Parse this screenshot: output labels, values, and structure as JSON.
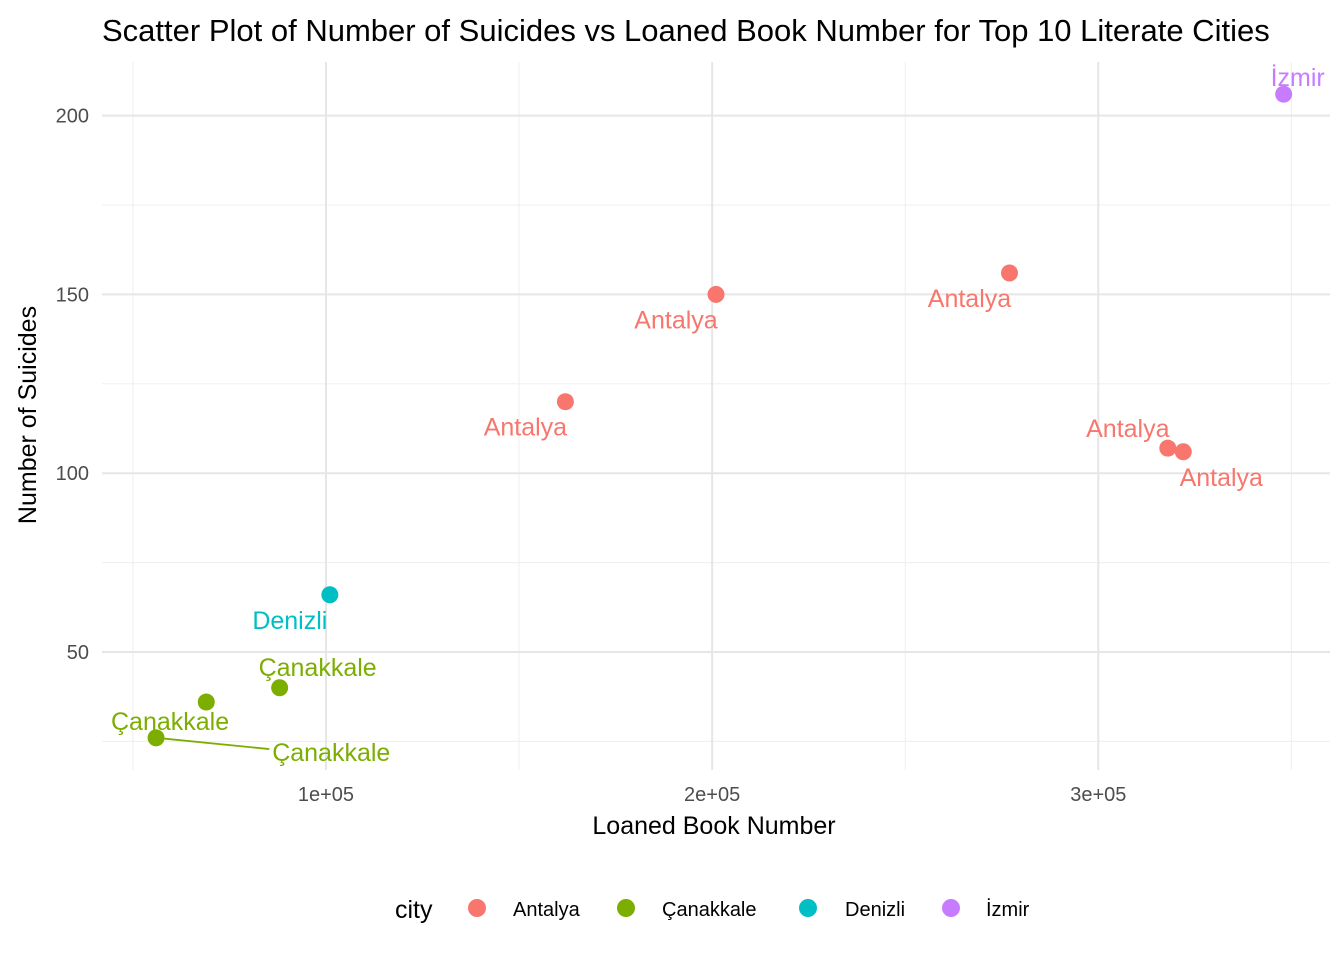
{
  "chart_data": {
    "type": "scatter",
    "title": "Scatter Plot of Number of Suicides vs Loaned Book Number for Top 10 Literate Cities",
    "xlabel": "Loaned Book Number",
    "ylabel": "Number of Suicides",
    "xlim": [
      42000,
      360000
    ],
    "ylim": [
      17,
      215
    ],
    "x_ticks": [
      {
        "value": 100000,
        "label": "1e+05"
      },
      {
        "value": 200000,
        "label": "2e+05"
      },
      {
        "value": 300000,
        "label": "3e+05"
      }
    ],
    "x_minor_ticks": [
      50000,
      150000,
      250000,
      350000
    ],
    "y_ticks": [
      {
        "value": 50,
        "label": "50"
      },
      {
        "value": 100,
        "label": "100"
      },
      {
        "value": 150,
        "label": "150"
      },
      {
        "value": 200,
        "label": "200"
      }
    ],
    "y_minor_ticks": [
      25,
      75,
      125,
      175
    ],
    "grid": true,
    "legend": {
      "title": "city",
      "position": "bottom",
      "entries": [
        {
          "name": "Antalya",
          "color": "#F8766D"
        },
        {
          "name": "Çanakkale",
          "color": "#7CAE00"
        },
        {
          "name": "Denizli",
          "color": "#00BFC4"
        },
        {
          "name": "İzmir",
          "color": "#C77CFF"
        }
      ]
    },
    "series": [
      {
        "name": "Antalya",
        "color": "#F8766D",
        "points": [
          {
            "x": 162000,
            "y": 120,
            "label": "Antalya",
            "label_anchor": "below-left"
          },
          {
            "x": 201000,
            "y": 150,
            "label": "Antalya",
            "label_anchor": "below-left"
          },
          {
            "x": 277000,
            "y": 156,
            "label": "Antalya",
            "label_anchor": "below-left"
          },
          {
            "x": 318000,
            "y": 107,
            "label": "Antalya",
            "label_anchor": "above-left"
          },
          {
            "x": 322000,
            "y": 106,
            "label": "Antalya",
            "label_anchor": "below-right"
          }
        ]
      },
      {
        "name": "Çanakkale",
        "color": "#7CAE00",
        "points": [
          {
            "x": 56000,
            "y": 26,
            "label": "Çanakkale",
            "label_anchor": "above"
          },
          {
            "x": 69000,
            "y": 36,
            "label": "Çanakkale",
            "label_anchor": "below-right-far"
          },
          {
            "x": 88000,
            "y": 40,
            "label": "Çanakkale",
            "label_anchor": "above-right"
          }
        ]
      },
      {
        "name": "Denizli",
        "color": "#00BFC4",
        "points": [
          {
            "x": 101000,
            "y": 66,
            "label": "Denizli",
            "label_anchor": "below-left"
          }
        ]
      },
      {
        "name": "İzmir",
        "color": "#C77CFF",
        "points": [
          {
            "x": 348000,
            "y": 206,
            "label": "İzmir",
            "label_anchor": "above"
          }
        ]
      }
    ]
  }
}
